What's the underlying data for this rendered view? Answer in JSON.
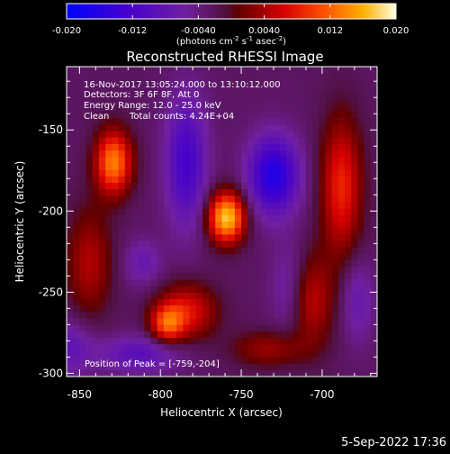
{
  "colorbar": {
    "ticks": [
      "-0.020",
      "-0.012",
      "-0.0040",
      "0.0040",
      "0.012",
      "0.020"
    ],
    "tick_values": [
      -0.02,
      -0.012,
      -0.004,
      0.004,
      0.012,
      0.02
    ],
    "range": [
      -0.02,
      0.02
    ],
    "units_prefix": "(photons cm",
    "units_exp1": "-2",
    "units_mid1": " s",
    "units_exp2": "-1",
    "units_mid2": " asec",
    "units_exp3": "-2",
    "units_suffix": ")",
    "colors": [
      "#0000ff",
      "#5000c8",
      "#7a20a8",
      "#5a0030",
      "#c00000",
      "#ff4000",
      "#ffa000",
      "#ffffc0"
    ]
  },
  "chart_data": {
    "type": "heatmap",
    "title": "Reconstructed RHESSI Image",
    "xlabel": "Heliocentric X (arcsec)",
    "ylabel": "Heliocentric Y (arcsec)",
    "xlim": [
      -858,
      -666
    ],
    "ylim": [
      -302,
      -111
    ],
    "x_ticks": [
      "-850",
      "-800",
      "-750",
      "-700"
    ],
    "x_tick_values": [
      -850,
      -800,
      -750,
      -700
    ],
    "y_ticks": [
      "-150",
      "-200",
      "-250",
      "-300"
    ],
    "y_tick_values": [
      -150,
      -200,
      -250,
      -300
    ],
    "sources": [
      {
        "x": -759,
        "y": -204,
        "sx": 8,
        "sy": 11,
        "amp": 0.02
      },
      {
        "x": -829,
        "y": -170,
        "sx": 8,
        "sy": 14,
        "amp": 0.016
      },
      {
        "x": -688,
        "y": -185,
        "sx": 9,
        "sy": 30,
        "amp": 0.011
      },
      {
        "x": -844,
        "y": -232,
        "sx": 10,
        "sy": 24,
        "amp": 0.007
      },
      {
        "x": -784,
        "y": -262,
        "sx": 13,
        "sy": 12,
        "amp": 0.01
      },
      {
        "x": -796,
        "y": -270,
        "sx": 7,
        "sy": 8,
        "amp": 0.011
      },
      {
        "x": -733,
        "y": -285,
        "sx": 16,
        "sy": 8,
        "amp": 0.006
      },
      {
        "x": -707,
        "y": -255,
        "sx": 10,
        "sy": 20,
        "amp": 0.008
      },
      {
        "x": -784,
        "y": -170,
        "sx": 9,
        "sy": 28,
        "amp": -0.01
      },
      {
        "x": -730,
        "y": -178,
        "sx": 11,
        "sy": 17,
        "amp": -0.014
      },
      {
        "x": -813,
        "y": -288,
        "sx": 18,
        "sy": 8,
        "amp": -0.007
      },
      {
        "x": -856,
        "y": -284,
        "sx": 10,
        "sy": 12,
        "amp": -0.006
      },
      {
        "x": -811,
        "y": -232,
        "sx": 8,
        "sy": 10,
        "amp": -0.005
      },
      {
        "x": -720,
        "y": -248,
        "sx": 8,
        "sy": 20,
        "amp": -0.005
      },
      {
        "x": -678,
        "y": -255,
        "sx": 7,
        "sy": 18,
        "amp": -0.005
      }
    ],
    "annotations": {
      "line1": "16-Nov-2017 13:05:24.000 to 13:10:12.000",
      "line2": "Detectors: 3F 6F 8F, Att 0",
      "line3": "Energy Range: 12.0 - 25.0 keV",
      "line4_label": "Clean",
      "line4_counts": "Total counts: 4.24E+04",
      "peak": "Position of Peak = [-759,-204]"
    }
  },
  "footer": {
    "date": "5-Sep-2022 17:36"
  }
}
